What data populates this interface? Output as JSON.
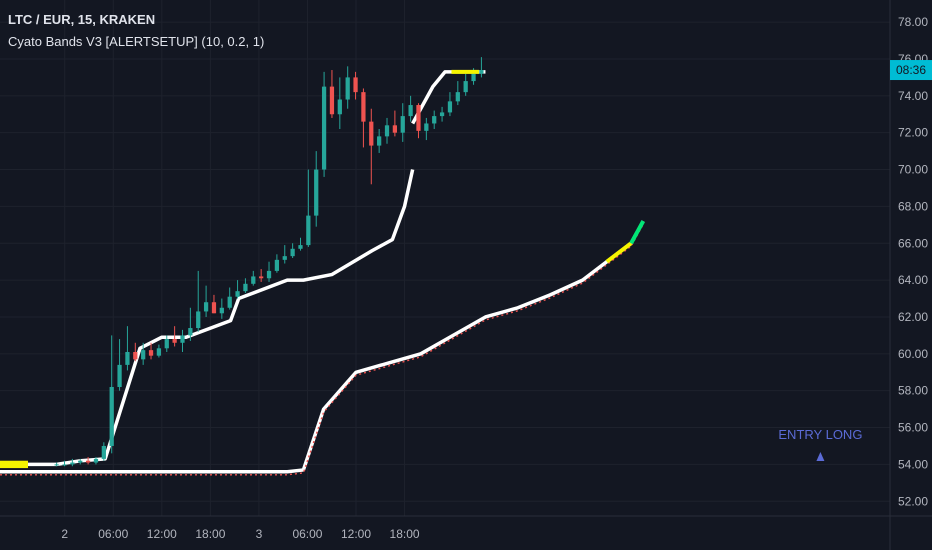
{
  "header": {
    "symbol_label": "LTC / EUR, 15, KRAKEN",
    "indicator_label": "Cyato Bands V3 [ALERTSETUP] (10, 0.2, 1)"
  },
  "colors": {
    "background": "#131722",
    "up_candle": "#26a69a",
    "down_candle": "#ef5350",
    "band": "#ffffff",
    "highlight": "#f5f500",
    "signal_green": "#00e676",
    "annotation": "#5b6bd6",
    "price_badge": "#00bcd4",
    "grid": "#1e222d"
  },
  "price_badge": {
    "label": "08:36",
    "value": 75.4
  },
  "annotation": {
    "label": "ENTRY LONG",
    "marker": "triangle-up",
    "x": 93.4,
    "y": 54.4
  },
  "chart_data": {
    "type": "line",
    "title": "LTC / EUR, 15, KRAKEN",
    "xlabel": "",
    "ylabel": "",
    "x_unit": "hours from start of 2nd",
    "xlim": [
      -8,
      102
    ],
    "ylim": [
      51.2,
      79.2
    ],
    "yticks": [
      52.0,
      54.0,
      56.0,
      58.0,
      60.0,
      62.0,
      64.0,
      66.0,
      68.0,
      70.0,
      72.0,
      74.0,
      76.0,
      78.0
    ],
    "ytick_labels": [
      "52.00",
      "54.00",
      "56.00",
      "58.00",
      "60.00",
      "62.00",
      "64.00",
      "66.00",
      "68.00",
      "70.00",
      "72.00",
      "74.00",
      "76.00",
      "78.00"
    ],
    "xticks": [
      0,
      6,
      12,
      18,
      24,
      30,
      36,
      42
    ],
    "xtick_labels": [
      "2",
      "06:00",
      "12:00",
      "18:00",
      "3",
      "06:00",
      "12:00",
      "18:00"
    ],
    "legend": "top-left",
    "grid": true,
    "series": [
      {
        "role": "upper",
        "x": [
          -8,
          -1,
          2,
          5,
          9.3,
          12,
          15,
          20.5,
          21.5,
          27.5,
          29.5,
          33,
          38,
          40.5,
          42,
          43
        ],
        "y": [
          54.0,
          54.0,
          54.2,
          54.3,
          60.3,
          60.9,
          60.9,
          61.8,
          63.0,
          64.0,
          64.0,
          64.3,
          65.6,
          66.2,
          68.0,
          70.0
        ]
      },
      {
        "role": "upper-extension",
        "x": [
          43,
          45.5,
          47,
          52
        ],
        "y": [
          72.5,
          74.5,
          75.3,
          75.3
        ]
      },
      {
        "role": "lower",
        "x": [
          -8,
          5,
          27.5,
          29.5,
          32,
          36,
          40,
          44,
          48,
          52,
          56,
          60,
          64,
          67,
          70,
          71.5
        ],
        "y": [
          53.6,
          53.6,
          53.6,
          53.7,
          57.0,
          59.0,
          59.5,
          60.0,
          61.0,
          62.0,
          62.5,
          63.2,
          64.0,
          65.0,
          66.0,
          67.2
        ]
      },
      {
        "role": "candles",
        "open": [
          54.0,
          54.0,
          54.0,
          54.1,
          54.2,
          54.1,
          54.3,
          55.0,
          58.2,
          59.4,
          60.1,
          59.7,
          60.2,
          59.9,
          60.3,
          60.8,
          60.6,
          61.0,
          61.4,
          62.3,
          62.8,
          62.2,
          62.5,
          63.1,
          63.4,
          63.8,
          64.2,
          64.1,
          64.5,
          65.1,
          65.3,
          65.7,
          65.9,
          67.5,
          70.0,
          74.5,
          73.0,
          73.8,
          75.0,
          74.2,
          72.6,
          71.3,
          71.8,
          72.4,
          72.0,
          72.9,
          73.5,
          72.1,
          72.5,
          72.9,
          73.1,
          73.7,
          74.2,
          74.8,
          75.2
        ],
        "high": [
          54.1,
          54.2,
          54.3,
          54.3,
          54.4,
          54.4,
          55.2,
          61.0,
          60.8,
          61.5,
          60.6,
          60.6,
          60.6,
          60.5,
          61.0,
          61.5,
          61.3,
          62.5,
          64.5,
          63.7,
          63.2,
          63.0,
          63.6,
          64.0,
          64.1,
          64.5,
          64.6,
          65.0,
          65.4,
          65.9,
          66.0,
          66.3,
          70.0,
          71.0,
          75.3,
          75.4,
          75.0,
          75.6,
          75.3,
          74.4,
          73.3,
          72.2,
          72.8,
          73.2,
          73.6,
          74.0,
          73.6,
          72.8,
          73.2,
          73.4,
          74.2,
          74.8,
          75.2,
          75.5,
          76.1
        ],
        "low": [
          53.9,
          53.9,
          53.9,
          54.0,
          54.0,
          54.0,
          54.2,
          54.6,
          58.0,
          59.1,
          59.6,
          59.4,
          59.7,
          59.8,
          60.1,
          60.4,
          60.1,
          60.7,
          61.2,
          62.0,
          62.2,
          61.9,
          62.4,
          63.0,
          63.3,
          63.7,
          63.9,
          63.9,
          64.4,
          64.9,
          65.2,
          65.6,
          65.8,
          66.9,
          69.6,
          72.8,
          72.2,
          73.3,
          73.8,
          71.2,
          69.2,
          70.9,
          71.4,
          71.8,
          71.5,
          72.6,
          71.7,
          71.6,
          72.2,
          72.6,
          72.9,
          73.5,
          74.0,
          74.6,
          75.0
        ],
        "close": [
          54.0,
          54.0,
          54.1,
          54.2,
          54.1,
          54.3,
          55.0,
          58.2,
          59.4,
          60.1,
          59.7,
          60.2,
          59.9,
          60.3,
          60.8,
          60.6,
          61.0,
          61.4,
          62.3,
          62.8,
          62.2,
          62.5,
          63.1,
          63.4,
          63.8,
          64.2,
          64.1,
          64.5,
          65.1,
          65.3,
          65.7,
          65.9,
          67.5,
          70.0,
          74.5,
          73.0,
          73.8,
          75.0,
          74.2,
          72.6,
          71.3,
          71.8,
          72.4,
          72.0,
          72.9,
          73.5,
          72.1,
          72.5,
          72.9,
          73.1,
          73.7,
          74.2,
          74.8,
          75.2,
          75.4
        ]
      }
    ]
  }
}
